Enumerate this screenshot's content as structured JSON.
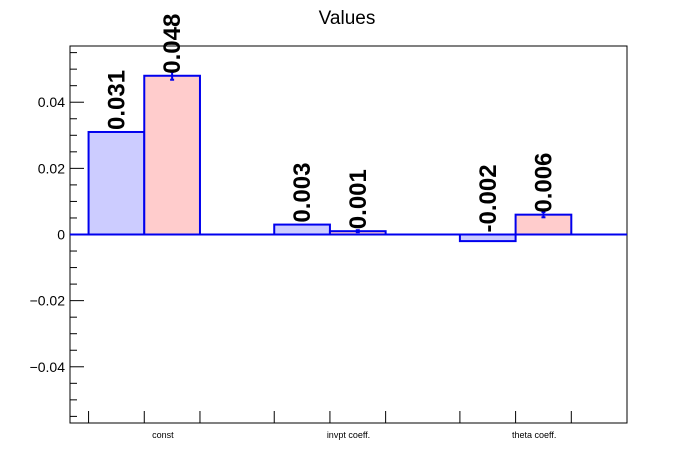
{
  "chart_data": {
    "type": "bar",
    "title": "Values",
    "xlabel": "",
    "ylabel": "",
    "categories": [
      "const",
      "invpt coeff.",
      "theta coeff."
    ],
    "ylim": [
      -0.057,
      0.057
    ],
    "yticks": [
      -0.04,
      -0.02,
      0,
      0.02,
      0.04
    ],
    "ytick_labels": [
      "−0.04",
      "−0.02",
      "0",
      "0.02",
      "0.04"
    ],
    "grid": false,
    "legend": "none",
    "series": [
      {
        "values": [
          0.031,
          0.003,
          -0.002
        ],
        "labels": [
          "0.031",
          "0.003",
          "-0.002"
        ],
        "errors": [
          0,
          0,
          0
        ],
        "fill": "#ccccff",
        "stroke": "#0000ee"
      },
      {
        "values": [
          0.048,
          0.001,
          0.006
        ],
        "labels": [
          "0.048",
          "0.001",
          "0.006"
        ],
        "errors": [
          0.0012,
          0.0003,
          0.0008
        ],
        "fill": "#ffcccc",
        "stroke": "#0000ee"
      }
    ]
  }
}
